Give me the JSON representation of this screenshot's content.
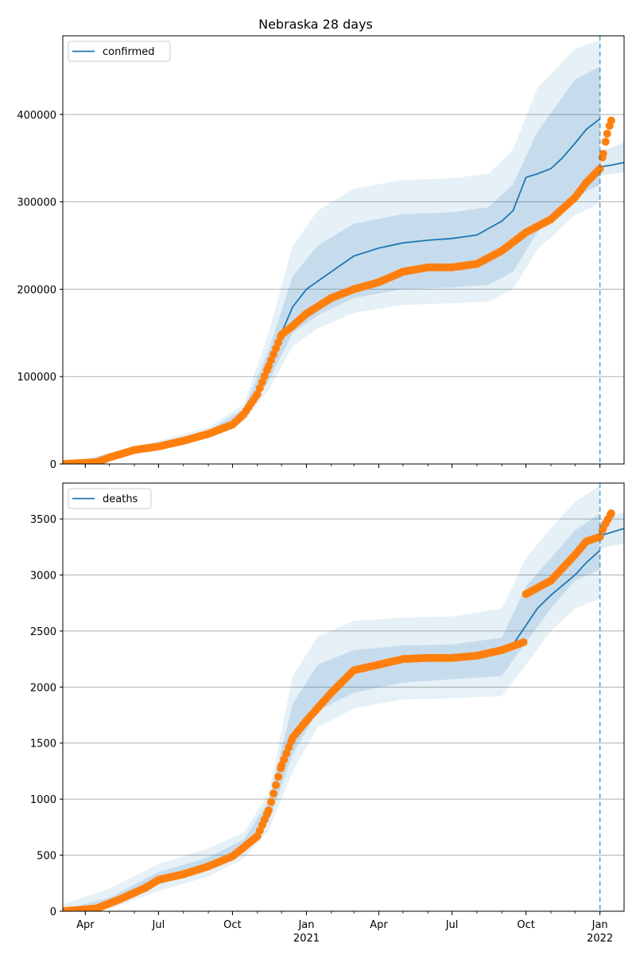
{
  "figure": {
    "title": "Nebraska 28 days",
    "x_ticks": [
      {
        "date": "2020-04-01",
        "label": "Apr",
        "sub": ""
      },
      {
        "date": "2020-07-01",
        "label": "Jul",
        "sub": ""
      },
      {
        "date": "2020-10-01",
        "label": "Oct",
        "sub": ""
      },
      {
        "date": "2021-01-01",
        "label": "Jan",
        "sub": "2021"
      },
      {
        "date": "2021-04-01",
        "label": "Apr",
        "sub": ""
      },
      {
        "date": "2021-07-01",
        "label": "Jul",
        "sub": ""
      },
      {
        "date": "2021-10-01",
        "label": "Oct",
        "sub": ""
      },
      {
        "date": "2022-01-01",
        "label": "Jan",
        "sub": "2022"
      }
    ],
    "x_range": [
      "2020-03-04",
      "2022-01-31"
    ],
    "forecast_start": "2022-01-01"
  },
  "chart_data": [
    {
      "type": "line",
      "legend": "confirmed",
      "legend_position": "upper-left",
      "grid": "y",
      "ylim": [
        0,
        490000
      ],
      "y_ticks": [
        {
          "value": 0,
          "label": "0"
        },
        {
          "value": 100000,
          "label": "100000"
        },
        {
          "value": 200000,
          "label": "200000"
        },
        {
          "value": 300000,
          "label": "300000"
        },
        {
          "value": 400000,
          "label": "400000"
        }
      ],
      "observed": {
        "color": "#ff7f0e",
        "x": [
          "2020-03-04",
          "2020-04-15",
          "2020-05-01",
          "2020-06-01",
          "2020-07-01",
          "2020-08-01",
          "2020-09-01",
          "2020-10-01",
          "2020-10-15",
          "2020-11-01",
          "2020-11-15",
          "2020-12-01",
          "2020-12-15",
          "2021-01-01",
          "2021-02-01",
          "2021-03-01",
          "2021-04-01",
          "2021-05-01",
          "2021-06-01",
          "2021-07-01",
          "2021-08-01",
          "2021-09-01",
          "2021-10-01",
          "2021-11-01",
          "2021-12-01",
          "2021-12-15",
          "2022-01-01",
          "2022-01-05",
          "2022-01-10",
          "2022-01-15"
        ],
        "y": [
          0,
          2000,
          7500,
          16000,
          20000,
          26500,
          34500,
          45000,
          57000,
          80000,
          112000,
          148000,
          158000,
          172000,
          190000,
          200000,
          208000,
          220000,
          225000,
          225000,
          229000,
          244000,
          265000,
          280000,
          305000,
          322000,
          338000,
          355000,
          378000,
          393000
        ]
      },
      "model": {
        "color": "#1f77b4",
        "x": [
          "2020-11-15",
          "2020-12-01",
          "2020-12-15",
          "2021-01-01",
          "2021-02-01",
          "2021-03-01",
          "2021-04-01",
          "2021-05-01",
          "2021-06-01",
          "2021-07-01",
          "2021-08-01",
          "2021-09-01",
          "2021-09-15",
          "2021-10-01",
          "2021-10-15",
          "2021-11-01",
          "2021-11-15",
          "2021-12-01",
          "2021-12-15",
          "2022-01-01"
        ],
        "y": [
          115000,
          150000,
          180000,
          200000,
          220000,
          238000,
          247000,
          253000,
          256000,
          258000,
          262000,
          278000,
          290000,
          328000,
          332000,
          338000,
          350000,
          367000,
          383000,
          395000
        ]
      },
      "forecast": {
        "x": [
          "2022-01-01",
          "2022-01-15",
          "2022-01-31"
        ],
        "y": [
          340000,
          342000,
          345000
        ]
      },
      "band_inner": {
        "x": [
          "2020-03-04",
          "2020-06-01",
          "2020-09-01",
          "2020-10-15",
          "2020-11-15",
          "2020-12-15",
          "2021-01-15",
          "2021-03-01",
          "2021-05-01",
          "2021-07-01",
          "2021-08-15",
          "2021-09-15",
          "2021-10-15",
          "2021-12-01",
          "2022-01-01"
        ],
        "upper": [
          0,
          17000,
          38000,
          63000,
          130000,
          215000,
          250000,
          275000,
          286000,
          288000,
          294000,
          320000,
          380000,
          440000,
          455000
        ],
        "lower": [
          0,
          15000,
          31000,
          52000,
          95000,
          150000,
          170000,
          190000,
          200000,
          202000,
          205000,
          220000,
          265000,
          305000,
          320000
        ]
      },
      "band_outer": {
        "x": [
          "2020-03-04",
          "2020-06-01",
          "2020-09-01",
          "2020-10-15",
          "2020-11-15",
          "2020-12-15",
          "2021-01-15",
          "2021-03-01",
          "2021-05-01",
          "2021-07-01",
          "2021-08-15",
          "2021-09-15",
          "2021-10-15",
          "2021-12-01",
          "2022-01-01"
        ],
        "upper": [
          0,
          19000,
          42000,
          68000,
          150000,
          250000,
          290000,
          315000,
          325000,
          327000,
          332000,
          360000,
          430000,
          475000,
          485000
        ],
        "lower": [
          0,
          14000,
          29000,
          48000,
          85000,
          135000,
          155000,
          173000,
          182000,
          184000,
          186000,
          200000,
          245000,
          285000,
          298000
        ]
      },
      "forecast_band": {
        "x": [
          "2022-01-01",
          "2022-01-15",
          "2022-01-31"
        ],
        "upper": [
          358000,
          362000,
          368000
        ],
        "lower": [
          330000,
          332000,
          334000
        ]
      }
    },
    {
      "type": "line",
      "legend": "deaths",
      "legend_position": "upper-left",
      "grid": "y",
      "ylim": [
        0,
        3820
      ],
      "y_ticks": [
        {
          "value": 0,
          "label": "0"
        },
        {
          "value": 500,
          "label": "500"
        },
        {
          "value": 1000,
          "label": "1000"
        },
        {
          "value": 1500,
          "label": "1500"
        },
        {
          "value": 2000,
          "label": "2000"
        },
        {
          "value": 2500,
          "label": "2500"
        },
        {
          "value": 3000,
          "label": "3000"
        },
        {
          "value": 3500,
          "label": "3500"
        }
      ],
      "observed": {
        "color": "#ff7f0e",
        "x": [
          "2020-03-04",
          "2020-04-15",
          "2020-05-15",
          "2020-06-15",
          "2020-07-01",
          "2020-08-01",
          "2020-09-01",
          "2020-10-01",
          "2020-10-15",
          "2020-11-01",
          "2020-11-15",
          "2020-12-01",
          "2020-12-15",
          "2021-01-01",
          "2021-02-01",
          "2021-03-01",
          "2021-04-01",
          "2021-05-01",
          "2021-06-01",
          "2021-07-01",
          "2021-08-01",
          "2021-09-01",
          "2021-09-28",
          "2021-10-01",
          "2021-11-01",
          "2021-12-01",
          "2021-12-15",
          "2022-01-01",
          "2022-01-05",
          "2022-01-15"
        ],
        "y": [
          0,
          25,
          110,
          210,
          280,
          330,
          400,
          490,
          570,
          670,
          900,
          1300,
          1550,
          1700,
          1950,
          2150,
          2200,
          2250,
          2260,
          2260,
          2280,
          2330,
          2400,
          2830,
          2950,
          3180,
          3300,
          3340,
          3420,
          3550
        ]
      },
      "model": {
        "color": "#1f77b4",
        "x": [
          "2021-09-15",
          "2021-10-01",
          "2021-10-15",
          "2021-11-01",
          "2021-12-01",
          "2021-12-15",
          "2022-01-01"
        ],
        "y": [
          2380,
          2550,
          2700,
          2820,
          3000,
          3110,
          3220
        ]
      },
      "forecast": {
        "x": [
          "2022-01-01",
          "2022-01-15",
          "2022-01-31"
        ],
        "y": [
          3350,
          3380,
          3415
        ]
      },
      "band_inner": {
        "x": [
          "2020-03-04",
          "2020-05-01",
          "2020-07-01",
          "2020-09-01",
          "2020-10-15",
          "2020-11-15",
          "2020-12-15",
          "2021-01-15",
          "2021-03-01",
          "2021-05-01",
          "2021-07-01",
          "2021-09-01",
          "2021-10-01",
          "2021-11-01",
          "2021-12-01",
          "2022-01-01"
        ],
        "upper": [
          15,
          120,
          350,
          480,
          640,
          980,
          1850,
          2200,
          2330,
          2370,
          2380,
          2440,
          2900,
          3150,
          3400,
          3550
        ],
        "lower": [
          0,
          60,
          240,
          370,
          520,
          800,
          1400,
          1790,
          1950,
          2040,
          2070,
          2100,
          2400,
          2700,
          2950,
          3050
        ]
      },
      "band_outer": {
        "x": [
          "2020-03-04",
          "2020-05-01",
          "2020-07-01",
          "2020-09-01",
          "2020-10-15",
          "2020-11-15",
          "2020-12-15",
          "2021-01-15",
          "2021-03-01",
          "2021-05-01",
          "2021-07-01",
          "2021-09-01",
          "2021-10-01",
          "2021-11-01",
          "2021-12-01",
          "2022-01-01"
        ],
        "upper": [
          60,
          200,
          420,
          560,
          700,
          1050,
          2100,
          2450,
          2590,
          2620,
          2630,
          2700,
          3150,
          3420,
          3650,
          3800
        ],
        "lower": [
          0,
          20,
          180,
          310,
          470,
          720,
          1250,
          1640,
          1810,
          1890,
          1900,
          1920,
          2200,
          2500,
          2700,
          2790
        ]
      },
      "forecast_band": {
        "x": [
          "2022-01-01",
          "2022-01-15",
          "2022-01-31"
        ],
        "upper": [
          3480,
          3520,
          3560
        ],
        "lower": [
          3230,
          3260,
          3280
        ]
      }
    }
  ]
}
